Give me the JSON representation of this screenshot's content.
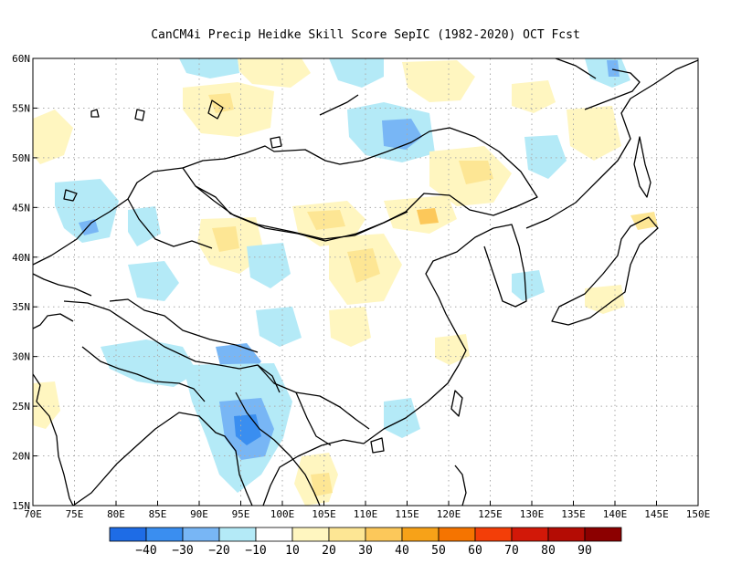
{
  "title": "CanCM4i Precip Heidke Skill Score SepIC (1982-2020) OCT Fcst",
  "x_ticks": [
    "70E",
    "75E",
    "80E",
    "85E",
    "90E",
    "95E",
    "100E",
    "105E",
    "110E",
    "115E",
    "120E",
    "125E",
    "130E",
    "135E",
    "140E",
    "145E",
    "150E"
  ],
  "y_ticks": [
    "60N",
    "55N",
    "50N",
    "45N",
    "40N",
    "35N",
    "30N",
    "25N",
    "20N",
    "15N"
  ],
  "colorbar": {
    "labels": [
      "−40",
      "−30",
      "−20",
      "−10",
      "10",
      "20",
      "30",
      "40",
      "50",
      "60",
      "70",
      "80",
      "90"
    ],
    "colors": [
      "#1e6ce6",
      "#3a8ef0",
      "#78b6f5",
      "#b4eaf7",
      "#ffffff",
      "#fff6c0",
      "#fde694",
      "#fcc85a",
      "#f7a218",
      "#f57400",
      "#f33e08",
      "#d21808",
      "#b40c04",
      "#8c0000"
    ]
  },
  "map": {
    "lon_range": [
      70,
      150
    ],
    "lat_range": [
      15,
      60
    ],
    "colors": {
      "neg_weak": "#b4eaf7",
      "neg_mid": "#78b6f5",
      "neg_strong": "#3a8ef0",
      "pos_weak": "#fff6c0",
      "pos_mid": "#fde694",
      "pos_strong": "#fcc85a",
      "border": "#000000",
      "grid": "#aaaaaa"
    }
  }
}
